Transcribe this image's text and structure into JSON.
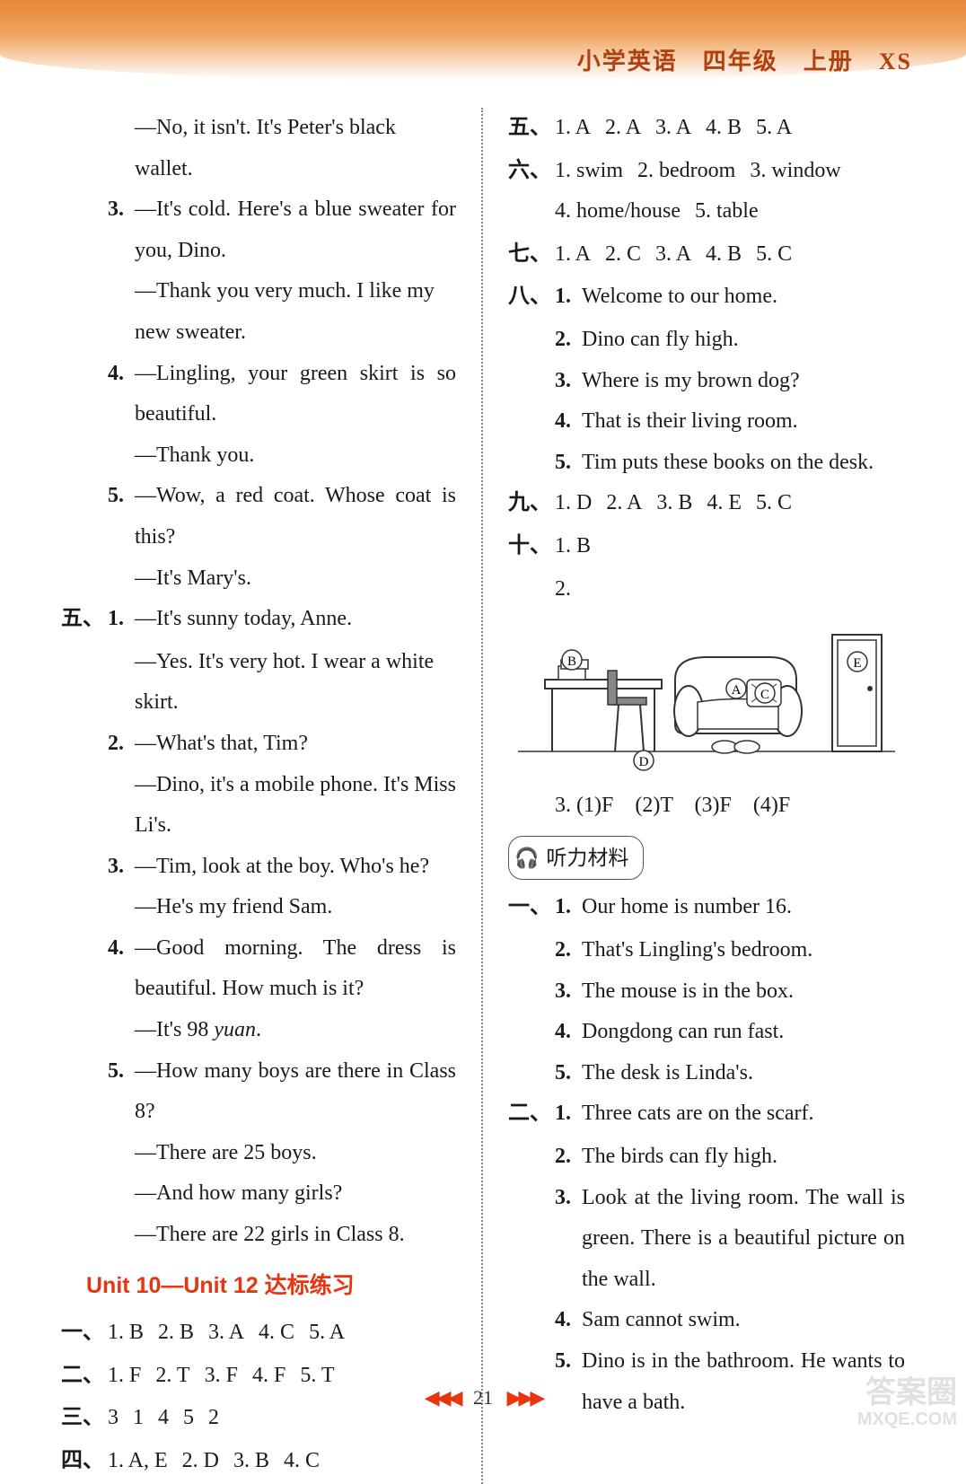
{
  "header": {
    "text": "小学英语　四年级　上册　XS"
  },
  "left": {
    "pre_items": [
      {
        "sub": "",
        "lines": [
          "—No, it isn't. It's Peter's black wallet."
        ],
        "indent": true
      },
      {
        "sub": "3.",
        "lines": [
          "—It's cold. Here's a blue sweater for you, Dino.",
          "—Thank you very much. I like my new sweater."
        ]
      },
      {
        "sub": "4.",
        "lines": [
          "—Lingling, your green skirt is so beautiful.",
          "—Thank you."
        ]
      },
      {
        "sub": "5.",
        "lines": [
          "—Wow, a red coat. Whose coat is this?",
          "—It's Mary's."
        ]
      }
    ],
    "section5": {
      "cn": "五、",
      "items": [
        {
          "sub": "1.",
          "lines": [
            "—It's sunny today, Anne.",
            "—Yes. It's very hot. I wear a white skirt."
          ]
        },
        {
          "sub": "2.",
          "lines": [
            "—What's that, Tim?",
            "—Dino, it's a mobile phone. It's Miss Li's."
          ]
        },
        {
          "sub": "3.",
          "lines": [
            "—Tim, look at the boy. Who's he?",
            "—He's my friend Sam."
          ]
        },
        {
          "sub": "4.",
          "lines": [
            "—Good morning. The dress is beautiful. How much is it?",
            "—It's 98 <i>yuan</i>."
          ]
        },
        {
          "sub": "5.",
          "lines": [
            "—How many boys are there in Class 8?",
            "—There are 25 boys.",
            "—And how many girls?",
            "—There are 22 girls in Class 8."
          ]
        }
      ]
    },
    "unit_title": "Unit 10—Unit 12 达标练习",
    "answers": [
      {
        "cn": "一、",
        "parts": [
          "1. B",
          "2. B",
          "3. A",
          "4. C",
          "5. A"
        ]
      },
      {
        "cn": "二、",
        "parts": [
          "1. F",
          "2. T",
          "3. F",
          "4. F",
          "5. T"
        ]
      },
      {
        "cn": "三、",
        "parts": [
          "3",
          "1",
          "4",
          "5",
          "2"
        ]
      },
      {
        "cn": "四、",
        "parts": [
          "1. A, E",
          "2. D",
          "3. B",
          "4. C"
        ]
      }
    ]
  },
  "right": {
    "answers_top": [
      {
        "cn": "五、",
        "parts": [
          "1. A",
          "2. A",
          "3. A",
          "4. B",
          "5. A"
        ]
      },
      {
        "cn": "六、",
        "parts": [
          "1. swim",
          "2. bedroom",
          "3. window",
          "4. home/house",
          "5. table"
        ],
        "wrap": true
      },
      {
        "cn": "七、",
        "parts": [
          "1. A",
          "2. C",
          "3. A",
          "4. B",
          "5. C"
        ]
      }
    ],
    "section8": {
      "cn": "八、",
      "items": [
        {
          "sub": "1.",
          "text": "Welcome to our home."
        },
        {
          "sub": "2.",
          "text": "Dino can fly high."
        },
        {
          "sub": "3.",
          "text": "Where is my brown dog?"
        },
        {
          "sub": "4.",
          "text": "That is their living room."
        },
        {
          "sub": "5.",
          "text": "Tim puts these books on the desk."
        }
      ]
    },
    "section9": {
      "cn": "九、",
      "parts": [
        "1. D",
        "2. A",
        "3. B",
        "4. E",
        "5. C"
      ]
    },
    "section10": {
      "cn": "十、",
      "sub1": "1. B",
      "sub2": "2.",
      "sub3": "3. (1)F　(2)T　(3)F　(4)F"
    },
    "illustration_labels": {
      "A": "A",
      "B": "B",
      "C": "C",
      "D": "D",
      "E": "E"
    },
    "listening_label": "听力材料",
    "listening": [
      {
        "cn": "一、",
        "items": [
          {
            "sub": "1.",
            "text": "Our home is number 16."
          },
          {
            "sub": "2.",
            "text": "That's Lingling's bedroom."
          },
          {
            "sub": "3.",
            "text": "The mouse is in the box."
          },
          {
            "sub": "4.",
            "text": "Dongdong can run fast."
          },
          {
            "sub": "5.",
            "text": "The desk is Linda's."
          }
        ]
      },
      {
        "cn": "二、",
        "items": [
          {
            "sub": "1.",
            "text": "Three cats are on the scarf."
          },
          {
            "sub": "2.",
            "text": "The birds can fly high."
          },
          {
            "sub": "3.",
            "text": "Look at the living room. The wall is green. There is a beautiful picture on the wall."
          },
          {
            "sub": "4.",
            "text": "Sam cannot swim."
          },
          {
            "sub": "5.",
            "text": "Dino is in the bathroom. He wants to have a bath."
          }
        ]
      }
    ]
  },
  "footer": {
    "page": "21"
  },
  "watermark": {
    "line1": "答案圈",
    "line2": "MXQE.COM"
  },
  "colors": {
    "header_gradient_top": "#e8873a",
    "header_text": "#b04010",
    "unit_title": "#e63510",
    "headphone": "#e87020",
    "text": "#1a1a1a",
    "divider": "#888888"
  }
}
